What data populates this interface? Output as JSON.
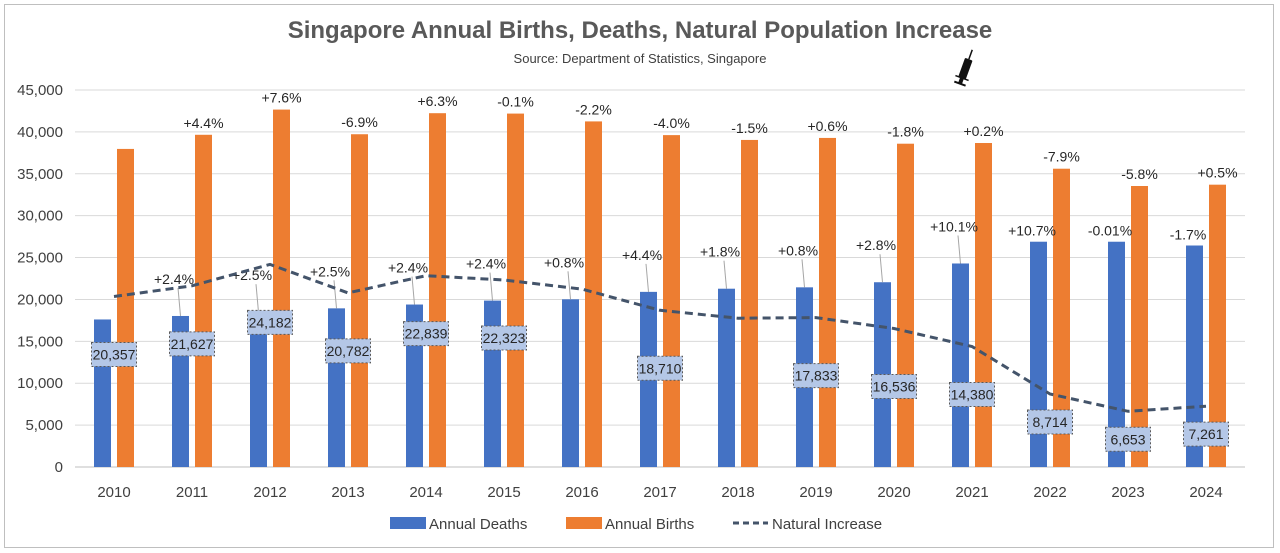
{
  "chart_data": {
    "type": "bar",
    "title": "Singapore Annual Births, Deaths, Natural Population Increase",
    "subtitle": "Source: Department of Statistics, Singapore",
    "categories": [
      "2010",
      "2011",
      "2012",
      "2013",
      "2014",
      "2015",
      "2016",
      "2017",
      "2018",
      "2019",
      "2020",
      "2021",
      "2022",
      "2023",
      "2024"
    ],
    "ylim": [
      0,
      45000
    ],
    "yticks": [
      0,
      5000,
      10000,
      15000,
      20000,
      25000,
      30000,
      35000,
      40000,
      45000
    ],
    "ytick_labels": [
      "0",
      "5,000",
      "10,000",
      "15,000",
      "20,000",
      "25,000",
      "30,000",
      "35,000",
      "40,000",
      "45,000"
    ],
    "grid": true,
    "legend_position": "bottom",
    "series": [
      {
        "name": "Annual Deaths",
        "kind": "bar",
        "color": "#4472c4",
        "values": [
          17610,
          18027,
          18481,
          18938,
          19393,
          19862,
          20017,
          20905,
          21282,
          21446,
          22054,
          24292,
          26891,
          26889,
          26438
        ],
        "change_labels": [
          "",
          "+2.4%",
          "+2.5%",
          "+2.5%",
          "+2.4%",
          "+2.4%",
          "+0.8%",
          "+4.4%",
          "+1.8%",
          "+0.8%",
          "+2.8%",
          "+10.1%",
          "+10.7%",
          "-0.01%",
          "-1.7%"
        ]
      },
      {
        "name": "Annual Births",
        "kind": "bar",
        "color": "#ed7d31",
        "values": [
          37967,
          39654,
          42663,
          39720,
          42232,
          42185,
          41251,
          39615,
          39039,
          39279,
          38590,
          38672,
          35605,
          33541,
          33699
        ],
        "change_labels": [
          "",
          "+4.4%",
          "+7.6%",
          "-6.9%",
          "+6.3%",
          "-0.1%",
          "-2.2%",
          "-4.0%",
          "-1.5%",
          "+0.6%",
          "-1.8%",
          "+0.2%",
          "-7.9%",
          "-5.8%",
          "+0.5%"
        ]
      },
      {
        "name": "Natural Increase",
        "kind": "line",
        "color": "#44546a",
        "values": [
          20357,
          21627,
          24182,
          20782,
          22839,
          22323,
          21234,
          18710,
          17757,
          17833,
          16536,
          14380,
          8714,
          6653,
          7261
        ],
        "value_labels": [
          "20,357",
          "21,627",
          "24,182",
          "20,782",
          "22,839",
          "22,323",
          "",
          "18,710",
          "",
          "17,833",
          "16,536",
          "14,380",
          "8,714",
          "6,653",
          "7,261"
        ]
      }
    ],
    "annotations": [
      {
        "type": "icon",
        "icon": "syringe-icon",
        "category": "2021"
      }
    ]
  }
}
